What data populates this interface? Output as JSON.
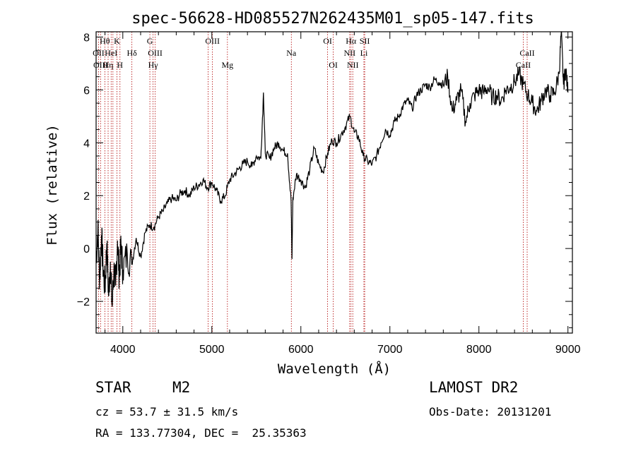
{
  "chart_data": {
    "type": "line",
    "title": "spec-56628-HD085527N262435M01_sp05-147.fits",
    "xlabel": "Wavelength (Å)",
    "ylabel": "Flux (relative)",
    "xlim": [
      3700,
      9050
    ],
    "ylim": [
      -3.2,
      8.2
    ],
    "xticks": [
      4000,
      5000,
      6000,
      7000,
      8000,
      9000
    ],
    "yticks": [
      -2,
      0,
      2,
      4,
      6,
      8
    ],
    "series": [
      {
        "x": [
          3700,
          3720,
          3740,
          3760,
          3780,
          3800,
          3820,
          3840,
          3860,
          3880,
          3900,
          3920,
          3940,
          3960,
          3980,
          4000,
          4050,
          4100,
          4150,
          4200,
          4250,
          4300,
          4350,
          4400,
          4450,
          4500,
          4550,
          4600,
          4650,
          4700,
          4750,
          4800,
          4850,
          4900,
          4950,
          5000,
          5050,
          5100,
          5150,
          5200,
          5250,
          5300,
          5350,
          5400,
          5450,
          5500,
          5550,
          5580,
          5600,
          5650,
          5700,
          5750,
          5800,
          5850,
          5890,
          5900,
          5910,
          5950,
          6000,
          6050,
          6100,
          6150,
          6200,
          6250,
          6300,
          6350,
          6400,
          6450,
          6500,
          6550,
          6600,
          6650,
          6700,
          6750,
          6800,
          6850,
          6900,
          6950,
          7000,
          7050,
          7100,
          7150,
          7200,
          7250,
          7300,
          7350,
          7400,
          7450,
          7500,
          7550,
          7600,
          7650,
          7700,
          7750,
          7800,
          7850,
          7900,
          7950,
          8000,
          8050,
          8100,
          8150,
          8200,
          8250,
          8300,
          8350,
          8400,
          8450,
          8500,
          8550,
          8600,
          8650,
          8700,
          8750,
          8800,
          8850,
          8900,
          8925,
          8950,
          8975,
          9000
        ],
        "y": [
          -0.5,
          0.8,
          -1.2,
          0.5,
          -0.8,
          -1.5,
          0.2,
          -1.8,
          -0.5,
          -2.2,
          -0.8,
          -1.4,
          0.3,
          -1.0,
          0.1,
          -0.8,
          -0.2,
          -0.6,
          0.4,
          -0.3,
          0.6,
          0.9,
          0.8,
          1.2,
          1.4,
          1.7,
          1.9,
          1.8,
          2.1,
          2.2,
          2.0,
          2.3,
          2.4,
          2.6,
          2.3,
          2.5,
          2.2,
          1.8,
          2.0,
          2.6,
          2.8,
          3.0,
          3.2,
          3.3,
          3.1,
          3.5,
          3.4,
          5.9,
          3.6,
          3.4,
          3.8,
          4.0,
          3.7,
          3.6,
          1.8,
          -0.4,
          1.9,
          2.8,
          2.6,
          2.3,
          3.0,
          3.8,
          3.2,
          2.9,
          3.6,
          4.1,
          4.0,
          4.3,
          4.6,
          5.0,
          4.4,
          4.2,
          3.5,
          3.3,
          3.2,
          3.5,
          4.0,
          4.5,
          4.3,
          4.8,
          5.0,
          5.4,
          5.6,
          5.3,
          5.8,
          6.0,
          6.2,
          6.1,
          6.4,
          6.3,
          6.2,
          6.5,
          5.2,
          5.6,
          6.0,
          4.8,
          5.5,
          5.8,
          6.0,
          5.9,
          6.1,
          5.7,
          5.8,
          5.6,
          6.0,
          6.1,
          6.3,
          6.6,
          6.2,
          5.8,
          5.5,
          5.2,
          5.6,
          6.0,
          5.8,
          5.9,
          6.6,
          8.2,
          6.2,
          6.8,
          5.9
        ]
      }
    ],
    "lines": [
      {
        "x": 3727,
        "label": "OII",
        "row": 2
      },
      {
        "x": 3750,
        "label": "OIII",
        "row": 3
      },
      {
        "x": 3798,
        "label": "Hθ",
        "row": 1
      },
      {
        "x": 3835,
        "label": "Hη",
        "row": 3
      },
      {
        "x": 3869,
        "label": "HeI",
        "row": 2
      },
      {
        "x": 3889,
        "label": "",
        "row": 0
      },
      {
        "x": 3934,
        "label": "K",
        "row": 1
      },
      {
        "x": 3968,
        "label": "H",
        "row": 3
      },
      {
        "x": 4102,
        "label": "Hδ",
        "row": 2
      },
      {
        "x": 4304,
        "label": "G",
        "row": 1
      },
      {
        "x": 4340,
        "label": "Hγ",
        "row": 3
      },
      {
        "x": 4363,
        "label": "OIII",
        "row": 2
      },
      {
        "x": 4959,
        "label": "",
        "row": 0
      },
      {
        "x": 5007,
        "label": "OIII",
        "row": 1
      },
      {
        "x": 5175,
        "label": "Mg",
        "row": 3
      },
      {
        "x": 5893,
        "label": "Na",
        "row": 2
      },
      {
        "x": 6300,
        "label": "OI",
        "row": 1
      },
      {
        "x": 6364,
        "label": "OI",
        "row": 3
      },
      {
        "x": 6548,
        "label": "NII",
        "row": 2
      },
      {
        "x": 6563,
        "label": "Hα",
        "row": 1
      },
      {
        "x": 6583,
        "label": "NII",
        "row": 3
      },
      {
        "x": 6708,
        "label": "Li",
        "row": 2
      },
      {
        "x": 6717,
        "label": "SII",
        "row": 1
      },
      {
        "x": 8498,
        "label": "CaII",
        "row": 3
      },
      {
        "x": 8542,
        "label": "CaII",
        "row": 2
      }
    ]
  },
  "info": {
    "class_label": "STAR",
    "subclass_label": "M2",
    "survey": "LAMOST DR2",
    "cz": "cz = 53.7 ± 31.5 km/s",
    "obs_date": "Obs-Date: 20131201",
    "radec": "RA = 133.77304, DEC =  25.35363"
  }
}
